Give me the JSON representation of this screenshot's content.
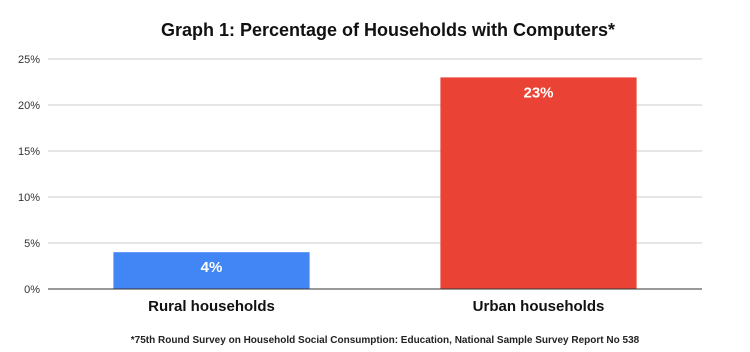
{
  "chart_data": {
    "type": "bar",
    "title": "Graph 1: Percentage of Households with Computers*",
    "categories": [
      "Rural households",
      "Urban households"
    ],
    "values": [
      4,
      23
    ],
    "data_labels": [
      "4%",
      "23%"
    ],
    "colors": [
      "#4285f4",
      "#ea4335"
    ],
    "ylim": [
      0,
      25
    ],
    "yticks": [
      0,
      5,
      10,
      15,
      20,
      25
    ],
    "ytick_labels": [
      "0%",
      "5%",
      "10%",
      "15%",
      "20%",
      "25%"
    ],
    "xlabel": "",
    "ylabel": "",
    "grid": true,
    "legend": "none",
    "footnote": "*75th Round Survey on Household Social Consumption: Education, National Sample Survey Report No 538"
  }
}
